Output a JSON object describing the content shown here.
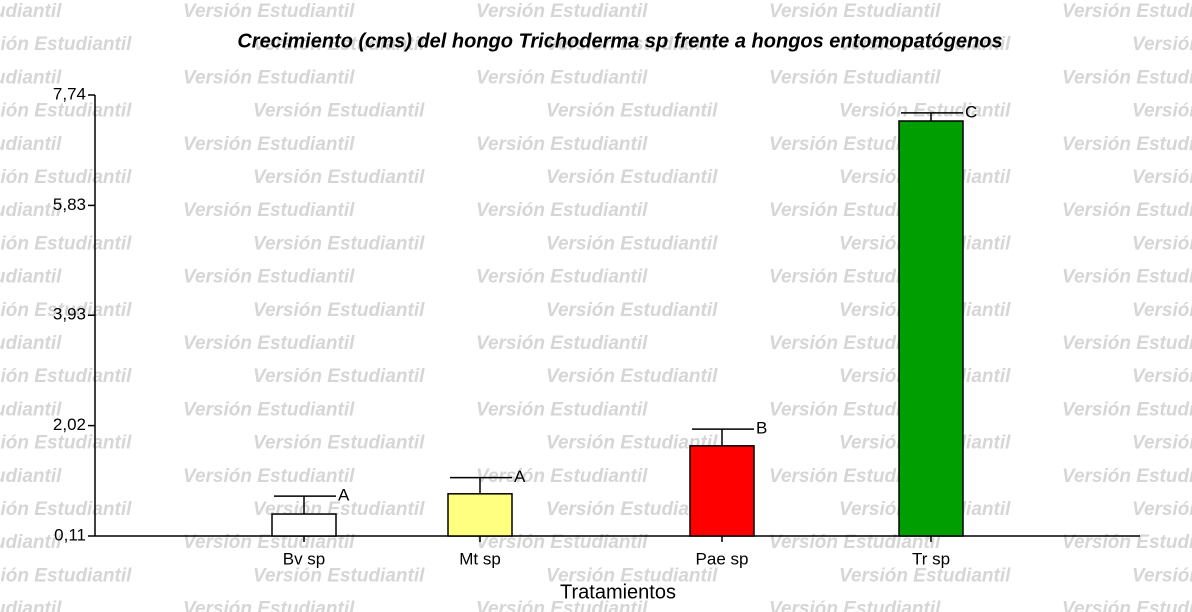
{
  "chart_data": {
    "type": "bar",
    "title": "Crecimiento (cms) del hongo Trichoderma sp frente a hongos entomopatógenos",
    "xlabel": "Tratamientos",
    "watermark": "Versión Estudiantil",
    "categories": [
      "Bv sp",
      "Mt sp",
      "Pae sp",
      "Tr sp"
    ],
    "values": [
      0.49,
      0.84,
      1.67,
      7.29
    ],
    "errors": [
      0.31,
      0.28,
      0.29,
      0.14
    ],
    "annotations": [
      "A",
      "A",
      "B",
      "C"
    ],
    "colors": [
      "#ffffff",
      "#ffff80",
      "#ff0000",
      "#009e00"
    ],
    "ylim": [
      0.11,
      7.74
    ],
    "yticks": [
      {
        "value": 0.11,
        "label": "0,11"
      },
      {
        "value": 2.02,
        "label": "2,02"
      },
      {
        "value": 3.93,
        "label": "3,93"
      },
      {
        "value": 5.83,
        "label": "5,83"
      },
      {
        "value": 7.74,
        "label": "7,74"
      }
    ]
  }
}
